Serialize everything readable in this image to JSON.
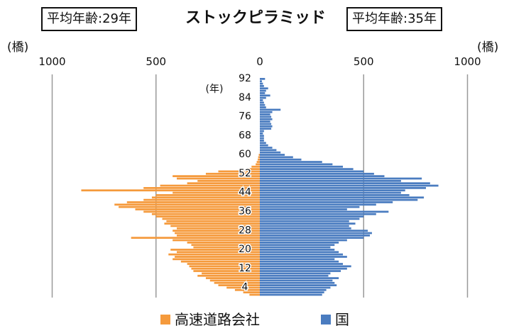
{
  "header": {
    "title": "ストックピラミッド",
    "avg_left": "平均年齢:29年",
    "avg_right": "平均年齢:35年",
    "unit_left": "(橋)",
    "unit_right": "(橋)"
  },
  "colors": {
    "left": "#f59a3c",
    "right": "#4a7cc0",
    "grid": "#999999"
  },
  "chart_data": {
    "type": "bar",
    "orientation": "horizontal-pyramid",
    "title": "ストックピラミッド",
    "xlim": [
      -1000,
      1000
    ],
    "x_ticks": [
      "1000",
      "500",
      "0",
      "500",
      "1000"
    ],
    "x_tick_values": [
      -1000,
      -500,
      0,
      500,
      1000
    ],
    "ylabel": "(年)",
    "y_tick_labels": [
      "92",
      "84",
      "76",
      "68",
      "60",
      "52",
      "44",
      "36",
      "28",
      "20",
      "12",
      "4"
    ],
    "y_tick_values": [
      92,
      84,
      76,
      68,
      60,
      52,
      44,
      36,
      28,
      20,
      12,
      4
    ],
    "ages": [
      1,
      2,
      3,
      4,
      5,
      6,
      7,
      8,
      9,
      10,
      11,
      12,
      13,
      14,
      15,
      16,
      17,
      18,
      19,
      20,
      21,
      22,
      23,
      24,
      25,
      26,
      27,
      28,
      29,
      30,
      31,
      32,
      33,
      34,
      35,
      36,
      37,
      38,
      39,
      40,
      41,
      42,
      43,
      44,
      45,
      46,
      47,
      48,
      49,
      50,
      51,
      52,
      53,
      54,
      55,
      56,
      57,
      58,
      59,
      60,
      61,
      62,
      63,
      64,
      65,
      66,
      67,
      68,
      69,
      70,
      71,
      72,
      73,
      74,
      75,
      76,
      77,
      78,
      79,
      80,
      81,
      82,
      83,
      84,
      85,
      86,
      87,
      88,
      89,
      90,
      91,
      92
    ],
    "series": [
      {
        "name": "高速道路会社",
        "side": "left",
        "values": [
          50,
          80,
          120,
          160,
          200,
          220,
          240,
          260,
          300,
          280,
          320,
          330,
          340,
          350,
          380,
          420,
          410,
          440,
          400,
          430,
          320,
          330,
          350,
          420,
          620,
          400,
          410,
          420,
          400,
          430,
          460,
          450,
          470,
          500,
          520,
          560,
          600,
          680,
          700,
          640,
          560,
          520,
          500,
          420,
          860,
          560,
          480,
          350,
          300,
          400,
          420,
          260,
          200,
          60,
          40,
          20,
          15,
          10,
          8,
          5,
          0,
          0,
          0,
          0,
          0,
          0,
          0,
          0,
          0,
          0,
          0,
          0,
          0,
          0,
          0,
          0,
          0,
          0,
          0,
          0,
          0,
          0,
          0,
          0,
          0,
          0,
          0,
          0,
          0,
          0,
          0,
          0
        ]
      },
      {
        "name": "国",
        "side": "right",
        "values": [
          300,
          310,
          320,
          340,
          370,
          360,
          350,
          380,
          330,
          340,
          390,
          420,
          440,
          400,
          380,
          360,
          420,
          400,
          380,
          360,
          340,
          360,
          380,
          420,
          500,
          530,
          540,
          520,
          440,
          430,
          460,
          430,
          480,
          500,
          560,
          620,
          420,
          480,
          560,
          640,
          760,
          790,
          720,
          680,
          700,
          800,
          860,
          820,
          680,
          780,
          600,
          550,
          500,
          450,
          400,
          350,
          300,
          200,
          160,
          120,
          100,
          80,
          60,
          40,
          30,
          20,
          20,
          20,
          15,
          20,
          55,
          60,
          55,
          50,
          60,
          55,
          50,
          60,
          100,
          30,
          25,
          20,
          15,
          30,
          50,
          25,
          30,
          40,
          20,
          15,
          10,
          25
        ]
      }
    ],
    "legend": "bottom"
  },
  "legend": {
    "left_label": "高速道路会社",
    "right_label": "国"
  }
}
